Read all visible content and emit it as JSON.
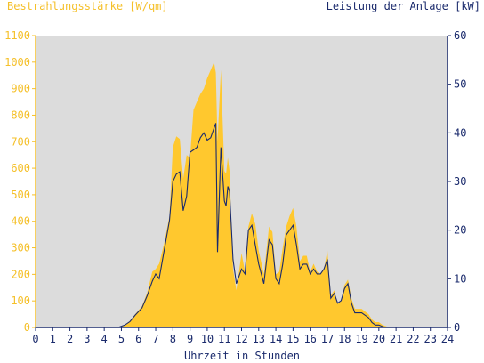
{
  "chart_data": {
    "type": "area",
    "title_left": "Bestrahlungsstärke [W/qm]",
    "title_right": "Leistung der Anlage [kW]",
    "xlabel": "Uhrzeit in Stunden",
    "x_ticks": [
      "0",
      "1",
      "2",
      "3",
      "4",
      "5",
      "6",
      "7",
      "8",
      "9",
      "10",
      "11",
      "12",
      "13",
      "14",
      "15",
      "16",
      "17",
      "18",
      "19",
      "20",
      "21",
      "22",
      "23",
      "24"
    ],
    "y_left_ticks": [
      "0",
      "100",
      "200",
      "300",
      "400",
      "500",
      "600",
      "700",
      "800",
      "900",
      "1000",
      "1100"
    ],
    "y_right_ticks": [
      "0",
      "10",
      "20",
      "30",
      "40",
      "50",
      "60"
    ],
    "xlim": [
      0,
      24
    ],
    "ylim_left": [
      0,
      1100
    ],
    "ylim_right": [
      0,
      60
    ],
    "grid": false,
    "series": [
      {
        "name": "Bestrahlungsstärke [W/qm]",
        "axis": "left",
        "style": "filled-area",
        "color": "#ffc82e",
        "x": [
          0,
          4.8,
          5.2,
          5.5,
          5.8,
          6.2,
          6.5,
          6.8,
          7.0,
          7.2,
          7.5,
          7.8,
          8.0,
          8.2,
          8.4,
          8.6,
          8.8,
          9.0,
          9.2,
          9.4,
          9.6,
          9.8,
          10.0,
          10.2,
          10.4,
          10.5,
          10.6,
          10.8,
          11.0,
          11.1,
          11.2,
          11.3,
          11.5,
          11.7,
          12.0,
          12.2,
          12.4,
          12.6,
          12.8,
          13.0,
          13.3,
          13.6,
          13.8,
          14.0,
          14.2,
          14.4,
          14.6,
          14.8,
          15.0,
          15.2,
          15.4,
          15.6,
          15.8,
          16.0,
          16.2,
          16.4,
          16.6,
          16.8,
          17.0,
          17.2,
          17.4,
          17.6,
          17.8,
          18.0,
          18.2,
          18.4,
          18.6,
          18.8,
          19.0,
          19.2,
          19.4,
          19.6,
          19.8,
          20.0,
          20.2,
          20.4,
          20.6,
          21.0,
          24
        ],
        "values": [
          0,
          0,
          10,
          25,
          50,
          80,
          130,
          210,
          220,
          240,
          320,
          420,
          680,
          720,
          710,
          560,
          650,
          640,
          820,
          850,
          880,
          900,
          940,
          970,
          1000,
          960,
          700,
          970,
          590,
          580,
          640,
          590,
          220,
          140,
          280,
          210,
          380,
          430,
          390,
          290,
          200,
          380,
          360,
          200,
          210,
          300,
          380,
          420,
          450,
          380,
          250,
          270,
          270,
          210,
          240,
          210,
          200,
          220,
          290,
          120,
          140,
          90,
          100,
          160,
          180,
          110,
          70,
          70,
          70,
          60,
          50,
          30,
          20,
          20,
          10,
          5,
          0,
          0,
          0
        ]
      },
      {
        "name": "Leistung der Anlage [kW]",
        "axis": "right",
        "style": "line",
        "color": "#1a2a6c",
        "x": [
          0,
          4.8,
          5.2,
          5.5,
          5.8,
          6.2,
          6.5,
          6.8,
          7.0,
          7.2,
          7.5,
          7.8,
          8.0,
          8.2,
          8.4,
          8.6,
          8.8,
          9.0,
          9.2,
          9.4,
          9.6,
          9.8,
          10.0,
          10.2,
          10.4,
          10.5,
          10.6,
          10.8,
          11.0,
          11.1,
          11.2,
          11.3,
          11.5,
          11.7,
          12.0,
          12.2,
          12.4,
          12.6,
          12.8,
          13.0,
          13.3,
          13.6,
          13.8,
          14.0,
          14.2,
          14.4,
          14.6,
          14.8,
          15.0,
          15.2,
          15.4,
          15.6,
          15.8,
          16.0,
          16.2,
          16.4,
          16.6,
          16.8,
          17.0,
          17.2,
          17.4,
          17.6,
          17.8,
          18.0,
          18.2,
          18.4,
          18.6,
          18.8,
          19.0,
          19.2,
          19.4,
          19.6,
          19.8,
          20.0,
          20.2,
          20.4,
          20.6,
          21.0,
          24
        ],
        "values": [
          0,
          0,
          0.5,
          1.2,
          2.5,
          4.0,
          6.5,
          9.5,
          11.0,
          10.0,
          16.0,
          22.0,
          30.0,
          31.5,
          32.0,
          24.0,
          27.0,
          36.0,
          36.5,
          37.0,
          39.0,
          40.0,
          38.5,
          39.0,
          41.0,
          42.0,
          15.5,
          37.0,
          26.0,
          25.0,
          29.0,
          28.0,
          14.0,
          9.0,
          12.0,
          11.0,
          20.0,
          21.0,
          17.0,
          13.0,
          9.0,
          18.0,
          17.0,
          10.0,
          9.0,
          13.0,
          19.0,
          20.0,
          21.0,
          17.0,
          12.0,
          13.0,
          13.0,
          11.0,
          12.0,
          11.0,
          11.0,
          12.0,
          14.0,
          6.0,
          7.0,
          5.0,
          5.5,
          8.0,
          9.0,
          5.0,
          3.0,
          3.0,
          3.0,
          2.5,
          2.0,
          1.0,
          0.5,
          0.5,
          0.2,
          0,
          0,
          0,
          0
        ]
      }
    ],
    "colors": {
      "plot_background": "#dcdcdc",
      "left_axis": "#f5c02a",
      "right_axis": "#1a2a6c",
      "x_axis": "#1a2a6c"
    }
  }
}
